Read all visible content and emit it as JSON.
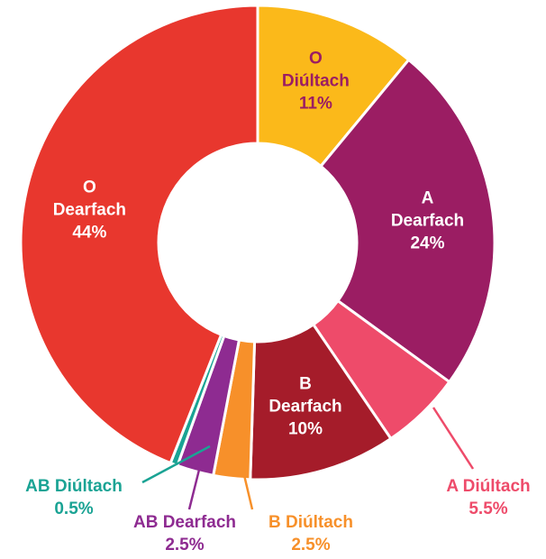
{
  "chart_data": {
    "type": "donut",
    "categories": [
      "O Diúltach",
      "A Dearfach",
      "A Diúltach",
      "B Dearfach",
      "B Diúltach",
      "AB Dearfach",
      "AB Diúltach",
      "O Dearfach"
    ],
    "values": [
      11,
      24,
      5.5,
      10,
      2.5,
      2.5,
      0.5,
      44
    ],
    "value_labels": [
      "11%",
      "24%",
      "5.5%",
      "10%",
      "2.5%",
      "2.5%",
      "0.5%",
      "44%"
    ],
    "colors": [
      "#fbb91a",
      "#9b1d63",
      "#ee4b6a",
      "#a51c2a",
      "#f7902a",
      "#8e2b91",
      "#1aa394",
      "#e8372e"
    ]
  }
}
